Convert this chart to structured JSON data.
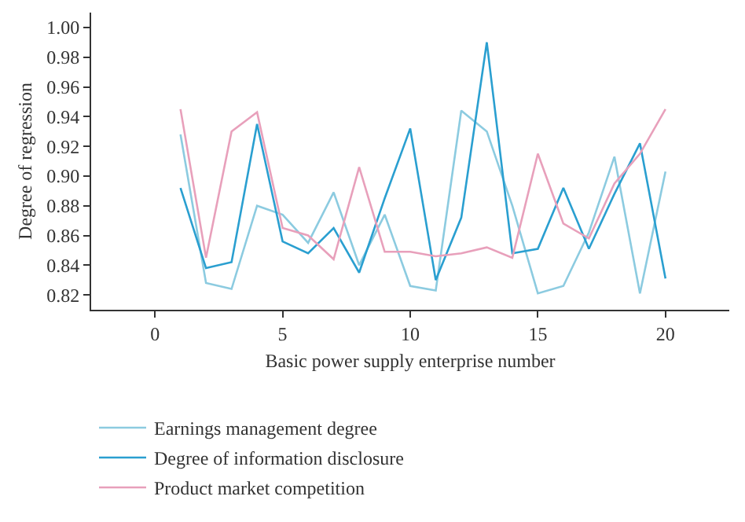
{
  "chart_data": {
    "type": "line",
    "xlabel": "Basic power supply enterprise number",
    "ylabel": "Degree of regression",
    "x": [
      1,
      2,
      3,
      4,
      5,
      6,
      7,
      8,
      9,
      10,
      11,
      12,
      13,
      14,
      15,
      16,
      17,
      18,
      19,
      20
    ],
    "series": [
      {
        "name": "Earnings management degree",
        "color": "#8ccbe0",
        "values": [
          0.928,
          0.828,
          0.824,
          0.88,
          0.874,
          0.855,
          0.889,
          0.84,
          0.874,
          0.826,
          0.823,
          0.944,
          0.93,
          0.88,
          0.821,
          0.826,
          0.862,
          0.913,
          0.821,
          0.903
        ]
      },
      {
        "name": "Degree of information disclosure",
        "color": "#2a9fd0",
        "values": [
          0.892,
          0.838,
          0.842,
          0.935,
          0.856,
          0.848,
          0.865,
          0.835,
          0.885,
          0.932,
          0.83,
          0.872,
          0.99,
          0.848,
          0.851,
          0.892,
          0.851,
          0.888,
          0.922,
          0.831
        ]
      },
      {
        "name": "Product market competition",
        "color": "#e8a0bb",
        "values": [
          0.945,
          0.845,
          0.93,
          0.943,
          0.865,
          0.86,
          0.844,
          0.906,
          0.849,
          0.849,
          0.846,
          0.848,
          0.852,
          0.845,
          0.915,
          0.868,
          0.858,
          0.895,
          0.915,
          0.945
        ]
      }
    ],
    "xlim": [
      -2.5,
      22.5
    ],
    "xticks": [
      0,
      5,
      10,
      15,
      20
    ],
    "ylim": [
      0.81,
      1.01
    ],
    "yticks": [
      0.82,
      0.84,
      0.86,
      0.88,
      {
        "value": 0.9,
        "label": "0.90"
      },
      0.92,
      0.94,
      0.96,
      0.98,
      {
        "value": 1,
        "label": "1.00"
      }
    ],
    "grid": false,
    "legend": "bottom",
    "marker": "none",
    "line_style": "solid"
  }
}
